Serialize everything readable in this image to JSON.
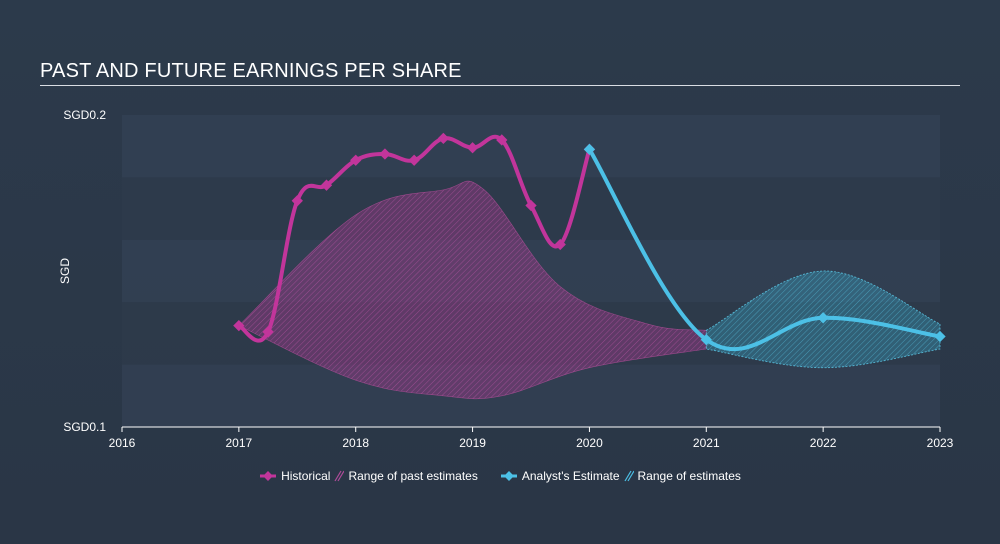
{
  "title": "PAST AND FUTURE EARNINGS PER SHARE",
  "legend": {
    "historical": "Historical",
    "past_range": "Range of past estimates",
    "analyst": "Analyst's Estimate",
    "future_range": "Range of estimates"
  },
  "colors": {
    "historical": "#c2359b",
    "analyst": "#4cc0e6",
    "past_range_fill": "#9b3a8a",
    "future_range_fill": "#3aa7c9",
    "band_dark": "#2f3c4c",
    "band_light": "#37465a"
  },
  "chart_data": {
    "type": "line",
    "title": "PAST AND FUTURE EARNINGS PER SHARE",
    "ylabel": "SGD",
    "y_tick_labels": [
      "SGD0.1",
      "SGD0.2"
    ],
    "ylim": [
      0.1,
      0.2
    ],
    "xlim": [
      2016,
      2023
    ],
    "x_tick_labels": [
      "2016",
      "2017",
      "2018",
      "2019",
      "2020",
      "2021",
      "2022",
      "2023"
    ],
    "legend_position": "bottom",
    "series": [
      {
        "name": "Historical",
        "points": [
          [
            2017.0,
            0.1325
          ],
          [
            2017.25,
            0.1305
          ],
          [
            2017.5,
            0.1725
          ],
          [
            2017.75,
            0.1775
          ],
          [
            2018.0,
            0.1855
          ],
          [
            2018.25,
            0.1875
          ],
          [
            2018.5,
            0.1855
          ],
          [
            2018.75,
            0.1925
          ],
          [
            2019.0,
            0.1895
          ],
          [
            2019.25,
            0.192
          ],
          [
            2019.5,
            0.171
          ],
          [
            2019.75,
            0.1585
          ],
          [
            2020.0,
            0.189
          ]
        ]
      },
      {
        "name": "Analyst's Estimate",
        "points": [
          [
            2020.0,
            0.189
          ],
          [
            2021.0,
            0.128
          ],
          [
            2022.0,
            0.135
          ],
          [
            2023.0,
            0.129
          ]
        ]
      }
    ],
    "ranges": [
      {
        "name": "Range of past estimates",
        "upper": [
          [
            2017.0,
            0.1325
          ],
          [
            2018.0,
            0.168
          ],
          [
            2018.75,
            0.176
          ],
          [
            2019.1,
            0.176
          ],
          [
            2019.75,
            0.145
          ],
          [
            2020.5,
            0.133
          ],
          [
            2021.0,
            0.131
          ]
        ],
        "lower": [
          [
            2017.0,
            0.1325
          ],
          [
            2018.0,
            0.115
          ],
          [
            2018.75,
            0.11
          ],
          [
            2019.25,
            0.11
          ],
          [
            2020.0,
            0.119
          ],
          [
            2021.0,
            0.125
          ]
        ]
      },
      {
        "name": "Range of estimates",
        "upper": [
          [
            2021.0,
            0.131
          ],
          [
            2022.0,
            0.15
          ],
          [
            2023.0,
            0.133
          ]
        ],
        "lower": [
          [
            2021.0,
            0.125
          ],
          [
            2022.0,
            0.119
          ],
          [
            2023.0,
            0.125
          ]
        ]
      }
    ]
  }
}
